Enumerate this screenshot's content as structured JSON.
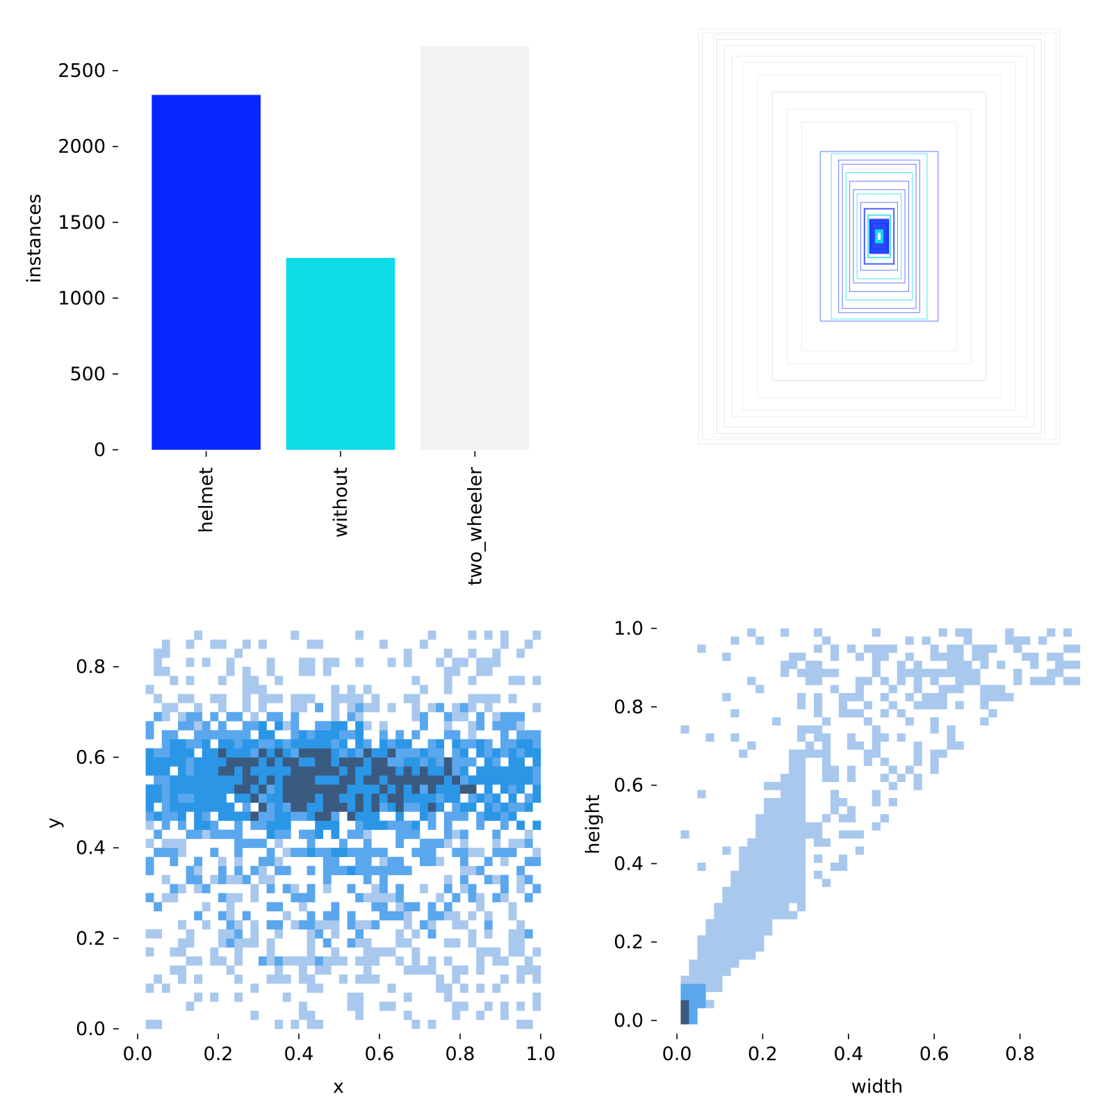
{
  "colors": {
    "helmet": "#0a26ff",
    "without": "#0ddce8",
    "two_wheeler": "#f2f2f2",
    "hist_light": "#a9c8ee",
    "hist_mid": "#5aa7ee",
    "hist_blue": "#2b96e6",
    "hist_dark": "#3b5a80"
  },
  "chart_data": [
    {
      "id": "instances-bar",
      "type": "bar",
      "categories": [
        "helmet",
        "without",
        "two_wheeler"
      ],
      "values": [
        2340,
        1265,
        2660
      ],
      "colors": [
        "#0a26ff",
        "#0ddce8",
        "#f2f2f2"
      ],
      "xlabel": "",
      "ylabel": "instances",
      "ylim": [
        0,
        2700
      ],
      "yticks": [
        0,
        500,
        1000,
        1500,
        2000,
        2500
      ],
      "ytick_labels": [
        "0",
        "500",
        "1000",
        "1500",
        "2000",
        "2500"
      ],
      "grid": false
    },
    {
      "id": "box-overlay",
      "type": "other",
      "description_visible": "overlaid centered bounding boxes, no axes",
      "boxes_wh_fraction": [
        [
          0.98,
          0.98
        ],
        [
          0.96,
          0.96
        ],
        [
          0.9,
          0.95
        ],
        [
          0.88,
          0.93
        ],
        [
          0.84,
          0.9
        ],
        [
          0.8,
          0.85
        ],
        [
          0.74,
          0.82
        ],
        [
          0.66,
          0.76
        ],
        [
          0.58,
          0.68
        ],
        [
          0.5,
          0.6
        ],
        [
          0.42,
          0.54
        ],
        [
          0.32,
          0.4
        ],
        [
          0.26,
          0.39
        ],
        [
          0.22,
          0.36
        ],
        [
          0.2,
          0.34
        ],
        [
          0.18,
          0.3
        ],
        [
          0.16,
          0.26
        ],
        [
          0.14,
          0.22
        ],
        [
          0.12,
          0.2
        ],
        [
          0.1,
          0.16
        ],
        [
          0.08,
          0.13
        ],
        [
          0.06,
          0.1
        ],
        [
          0.05,
          0.08
        ],
        [
          0.04,
          0.06
        ],
        [
          0.02,
          0.03
        ]
      ]
    },
    {
      "id": "xy-heatmap",
      "type": "heatmap",
      "xlabel": "x",
      "ylabel": "y",
      "xlim": [
        0.0,
        1.0
      ],
      "ylim": [
        0.0,
        0.88
      ],
      "xticks": [
        0.0,
        0.2,
        0.4,
        0.6,
        0.8,
        1.0
      ],
      "xtick_labels": [
        "0.0",
        "0.2",
        "0.4",
        "0.6",
        "0.8",
        "1.0"
      ],
      "yticks": [
        0.0,
        0.2,
        0.4,
        0.6,
        0.8
      ],
      "ytick_labels": [
        "0.0",
        "0.2",
        "0.4",
        "0.6",
        "0.8"
      ],
      "bins_x": 50,
      "bins_y": 44,
      "dense_band_y": [
        0.45,
        0.62
      ],
      "densest_x": [
        0.35,
        0.55
      ]
    },
    {
      "id": "wh-heatmap",
      "type": "heatmap",
      "xlabel": "width",
      "ylabel": "height",
      "xlim": [
        -0.03,
        0.94
      ],
      "ylim": [
        -0.03,
        1.0
      ],
      "xticks": [
        0.0,
        0.2,
        0.4,
        0.6,
        0.8
      ],
      "xtick_labels": [
        "0.0",
        "0.2",
        "0.4",
        "0.6",
        "0.8"
      ],
      "yticks": [
        0.0,
        0.2,
        0.4,
        0.6,
        0.8,
        1.0
      ],
      "ytick_labels": [
        "0.0",
        "0.2",
        "0.4",
        "0.6",
        "0.8",
        "1.0"
      ],
      "bins_x": 50,
      "bins_y": 50,
      "trend": "height ≈ 1.6 × width, dense near origin"
    }
  ]
}
